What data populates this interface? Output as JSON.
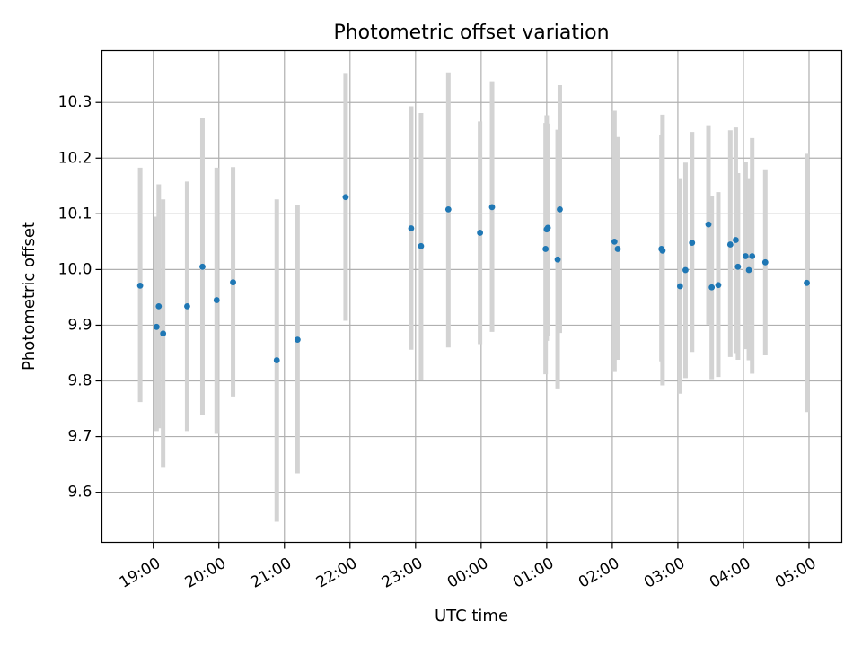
{
  "chart_data": {
    "type": "scatter",
    "title": "Photometric offset variation",
    "xlabel": "UTC time",
    "ylabel": "Photometric offset",
    "x_axis": {
      "range": [
        "18:13",
        "05:30"
      ],
      "ticks": [
        "19:00",
        "20:00",
        "21:00",
        "22:00",
        "23:00",
        "00:00",
        "01:00",
        "02:00",
        "03:00",
        "04:00",
        "05:00"
      ]
    },
    "y_axis": {
      "range": [
        9.51,
        10.393
      ],
      "ticks": [
        "9.6",
        "9.7",
        "9.8",
        "9.9",
        "10.0",
        "10.1",
        "10.2",
        "10.3"
      ]
    },
    "grid": true,
    "colors": {
      "point": "#1f77b4",
      "errorbar": "#d3d3d3",
      "grid": "#b0b0b0"
    },
    "points": [
      {
        "t": "18:48",
        "y": 9.971,
        "lo": 9.762,
        "hi": 10.183
      },
      {
        "t": "19:03",
        "y": 9.897,
        "lo": 9.71,
        "hi": 10.095
      },
      {
        "t": "19:05",
        "y": 9.934,
        "lo": 9.715,
        "hi": 10.153
      },
      {
        "t": "19:09",
        "y": 9.885,
        "lo": 9.644,
        "hi": 10.126
      },
      {
        "t": "19:31",
        "y": 9.934,
        "lo": 9.71,
        "hi": 10.158
      },
      {
        "t": "19:45",
        "y": 10.005,
        "lo": 9.738,
        "hi": 10.273
      },
      {
        "t": "19:58",
        "y": 9.945,
        "lo": 9.705,
        "hi": 10.183
      },
      {
        "t": "20:13",
        "y": 9.977,
        "lo": 9.772,
        "hi": 10.184
      },
      {
        "t": "20:53",
        "y": 9.837,
        "lo": 9.547,
        "hi": 10.126
      },
      {
        "t": "21:12",
        "y": 9.874,
        "lo": 9.634,
        "hi": 10.116
      },
      {
        "t": "21:56",
        "y": 10.13,
        "lo": 9.908,
        "hi": 10.353
      },
      {
        "t": "22:56",
        "y": 10.074,
        "lo": 9.856,
        "hi": 10.293
      },
      {
        "t": "23:05",
        "y": 10.042,
        "lo": 9.802,
        "hi": 10.281
      },
      {
        "t": "23:30",
        "y": 10.108,
        "lo": 9.86,
        "hi": 10.354
      },
      {
        "t": "23:59",
        "y": 10.066,
        "lo": 9.866,
        "hi": 10.266
      },
      {
        "t": "00:10",
        "y": 10.112,
        "lo": 9.888,
        "hi": 10.338
      },
      {
        "t": "00:59",
        "y": 10.037,
        "lo": 9.812,
        "hi": 10.263
      },
      {
        "t": "01:00",
        "y": 10.072,
        "lo": 9.872,
        "hi": 10.277
      },
      {
        "t": "01:01",
        "y": 10.075,
        "lo": 9.88,
        "hi": 10.262
      },
      {
        "t": "01:10",
        "y": 10.018,
        "lo": 9.785,
        "hi": 10.251
      },
      {
        "t": "01:12",
        "y": 10.108,
        "lo": 9.886,
        "hi": 10.331
      },
      {
        "t": "02:02",
        "y": 10.05,
        "lo": 9.816,
        "hi": 10.285
      },
      {
        "t": "02:05",
        "y": 10.037,
        "lo": 9.838,
        "hi": 10.238
      },
      {
        "t": "02:45",
        "y": 10.037,
        "lo": 9.835,
        "hi": 10.242
      },
      {
        "t": "02:46",
        "y": 10.034,
        "lo": 9.792,
        "hi": 10.278
      },
      {
        "t": "03:02",
        "y": 9.97,
        "lo": 9.777,
        "hi": 10.164
      },
      {
        "t": "03:07",
        "y": 9.999,
        "lo": 9.805,
        "hi": 10.192
      },
      {
        "t": "03:13",
        "y": 10.048,
        "lo": 9.852,
        "hi": 10.247
      },
      {
        "t": "03:28",
        "y": 10.081,
        "lo": 9.901,
        "hi": 10.259
      },
      {
        "t": "03:31",
        "y": 9.968,
        "lo": 9.803,
        "hi": 10.132
      },
      {
        "t": "03:37",
        "y": 9.972,
        "lo": 9.807,
        "hi": 10.139
      },
      {
        "t": "03:48",
        "y": 10.045,
        "lo": 9.843,
        "hi": 10.25
      },
      {
        "t": "03:53",
        "y": 10.053,
        "lo": 9.85,
        "hi": 10.255
      },
      {
        "t": "03:55",
        "y": 10.005,
        "lo": 9.838,
        "hi": 10.173
      },
      {
        "t": "04:02",
        "y": 10.024,
        "lo": 9.857,
        "hi": 10.193
      },
      {
        "t": "04:05",
        "y": 9.999,
        "lo": 9.837,
        "hi": 10.164
      },
      {
        "t": "04:08",
        "y": 10.024,
        "lo": 9.813,
        "hi": 10.236
      },
      {
        "t": "04:20",
        "y": 10.013,
        "lo": 9.846,
        "hi": 10.18
      },
      {
        "t": "04:58",
        "y": 9.976,
        "lo": 9.744,
        "hi": 10.208
      }
    ]
  }
}
